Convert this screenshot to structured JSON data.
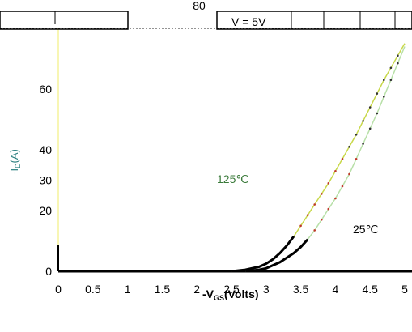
{
  "chart_data": {
    "type": "line",
    "title": "",
    "xlabel": "-V",
    "xlabel_sub": "GS",
    "xlabel_suffix": "(Volts)",
    "ylabel": "-I",
    "ylabel_sub": "D",
    "ylabel_suffix": "(A)",
    "xlim": [
      0,
      5
    ],
    "ylim": [
      0,
      80
    ],
    "x_ticks": [
      "0",
      "0.5",
      "1",
      "1.5",
      "2",
      "2.5",
      "3",
      "3.5",
      "4",
      "4.5",
      "5"
    ],
    "y_ticks": [
      "0",
      "20",
      "30",
      "40",
      "60",
      "80"
    ],
    "legend_text": "V = 5V",
    "annotations": [
      "125℃",
      "25℃"
    ],
    "series": [
      {
        "name": "125℃",
        "color": "#c8d84a",
        "x": [
          2.5,
          2.7,
          2.9,
          3.0,
          3.1,
          3.2,
          3.3,
          3.4,
          3.5,
          3.6,
          3.7,
          3.8,
          3.9,
          4.0,
          4.1,
          4.2,
          4.3,
          4.4,
          4.5,
          4.6,
          4.7,
          4.8,
          4.9,
          5.0
        ],
        "y": [
          0,
          0.5,
          1.5,
          2.5,
          4,
          6,
          8.5,
          11.5,
          15,
          18.5,
          22,
          25.5,
          29,
          33,
          37,
          41,
          45,
          49.5,
          54,
          58.5,
          63,
          67,
          71,
          75
        ]
      },
      {
        "name": "25℃",
        "color": "#b8e0a8",
        "x": [
          2.7,
          2.9,
          3.0,
          3.1,
          3.2,
          3.3,
          3.4,
          3.5,
          3.6,
          3.7,
          3.8,
          3.9,
          4.0,
          4.1,
          4.2,
          4.3,
          4.4,
          4.5,
          4.6,
          4.7,
          4.8,
          4.9,
          5.0
        ],
        "y": [
          0,
          0.5,
          1,
          2,
          3,
          4.5,
          6,
          8,
          10.5,
          13.5,
          17,
          20.5,
          24,
          28,
          32,
          37,
          42,
          47,
          52,
          57.5,
          63,
          68.5,
          74
        ]
      }
    ]
  }
}
